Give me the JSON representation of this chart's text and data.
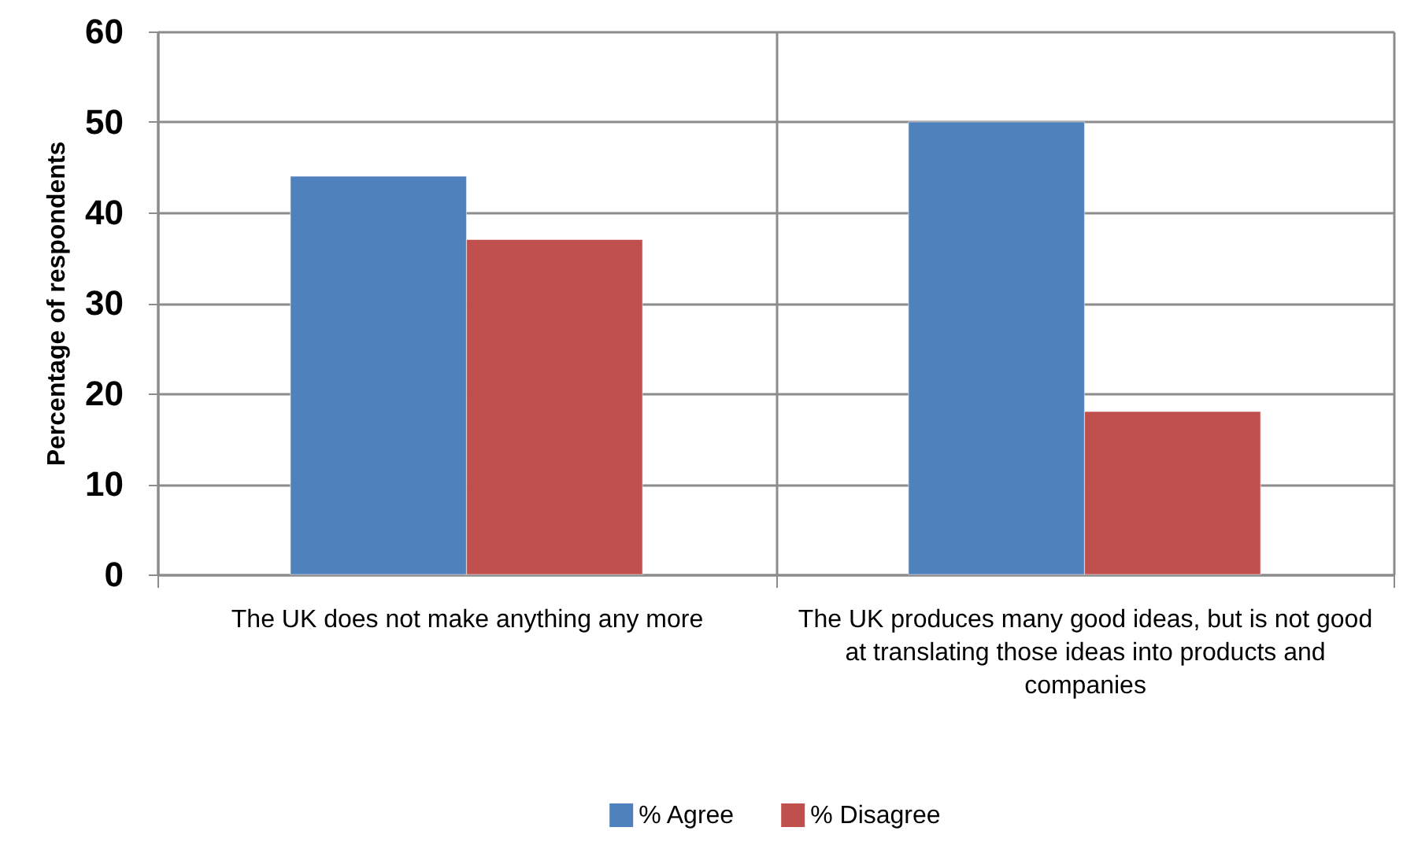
{
  "chart_data": {
    "type": "bar",
    "ylabel": "Percentage of respondents",
    "categories": [
      "The UK does not make anything any more",
      "The UK produces many good ideas, but is not good at translating those ideas into products and companies"
    ],
    "series": [
      {
        "name": "% Agree",
        "color": "#4f81bd",
        "values": [
          44,
          50
        ]
      },
      {
        "name": "% Disagree",
        "color": "#c0504d",
        "values": [
          37,
          18
        ]
      }
    ],
    "ylim": [
      0,
      60
    ],
    "yticks": [
      0,
      10,
      20,
      30,
      40,
      50,
      60
    ],
    "grid": true,
    "legend": "bottom"
  }
}
